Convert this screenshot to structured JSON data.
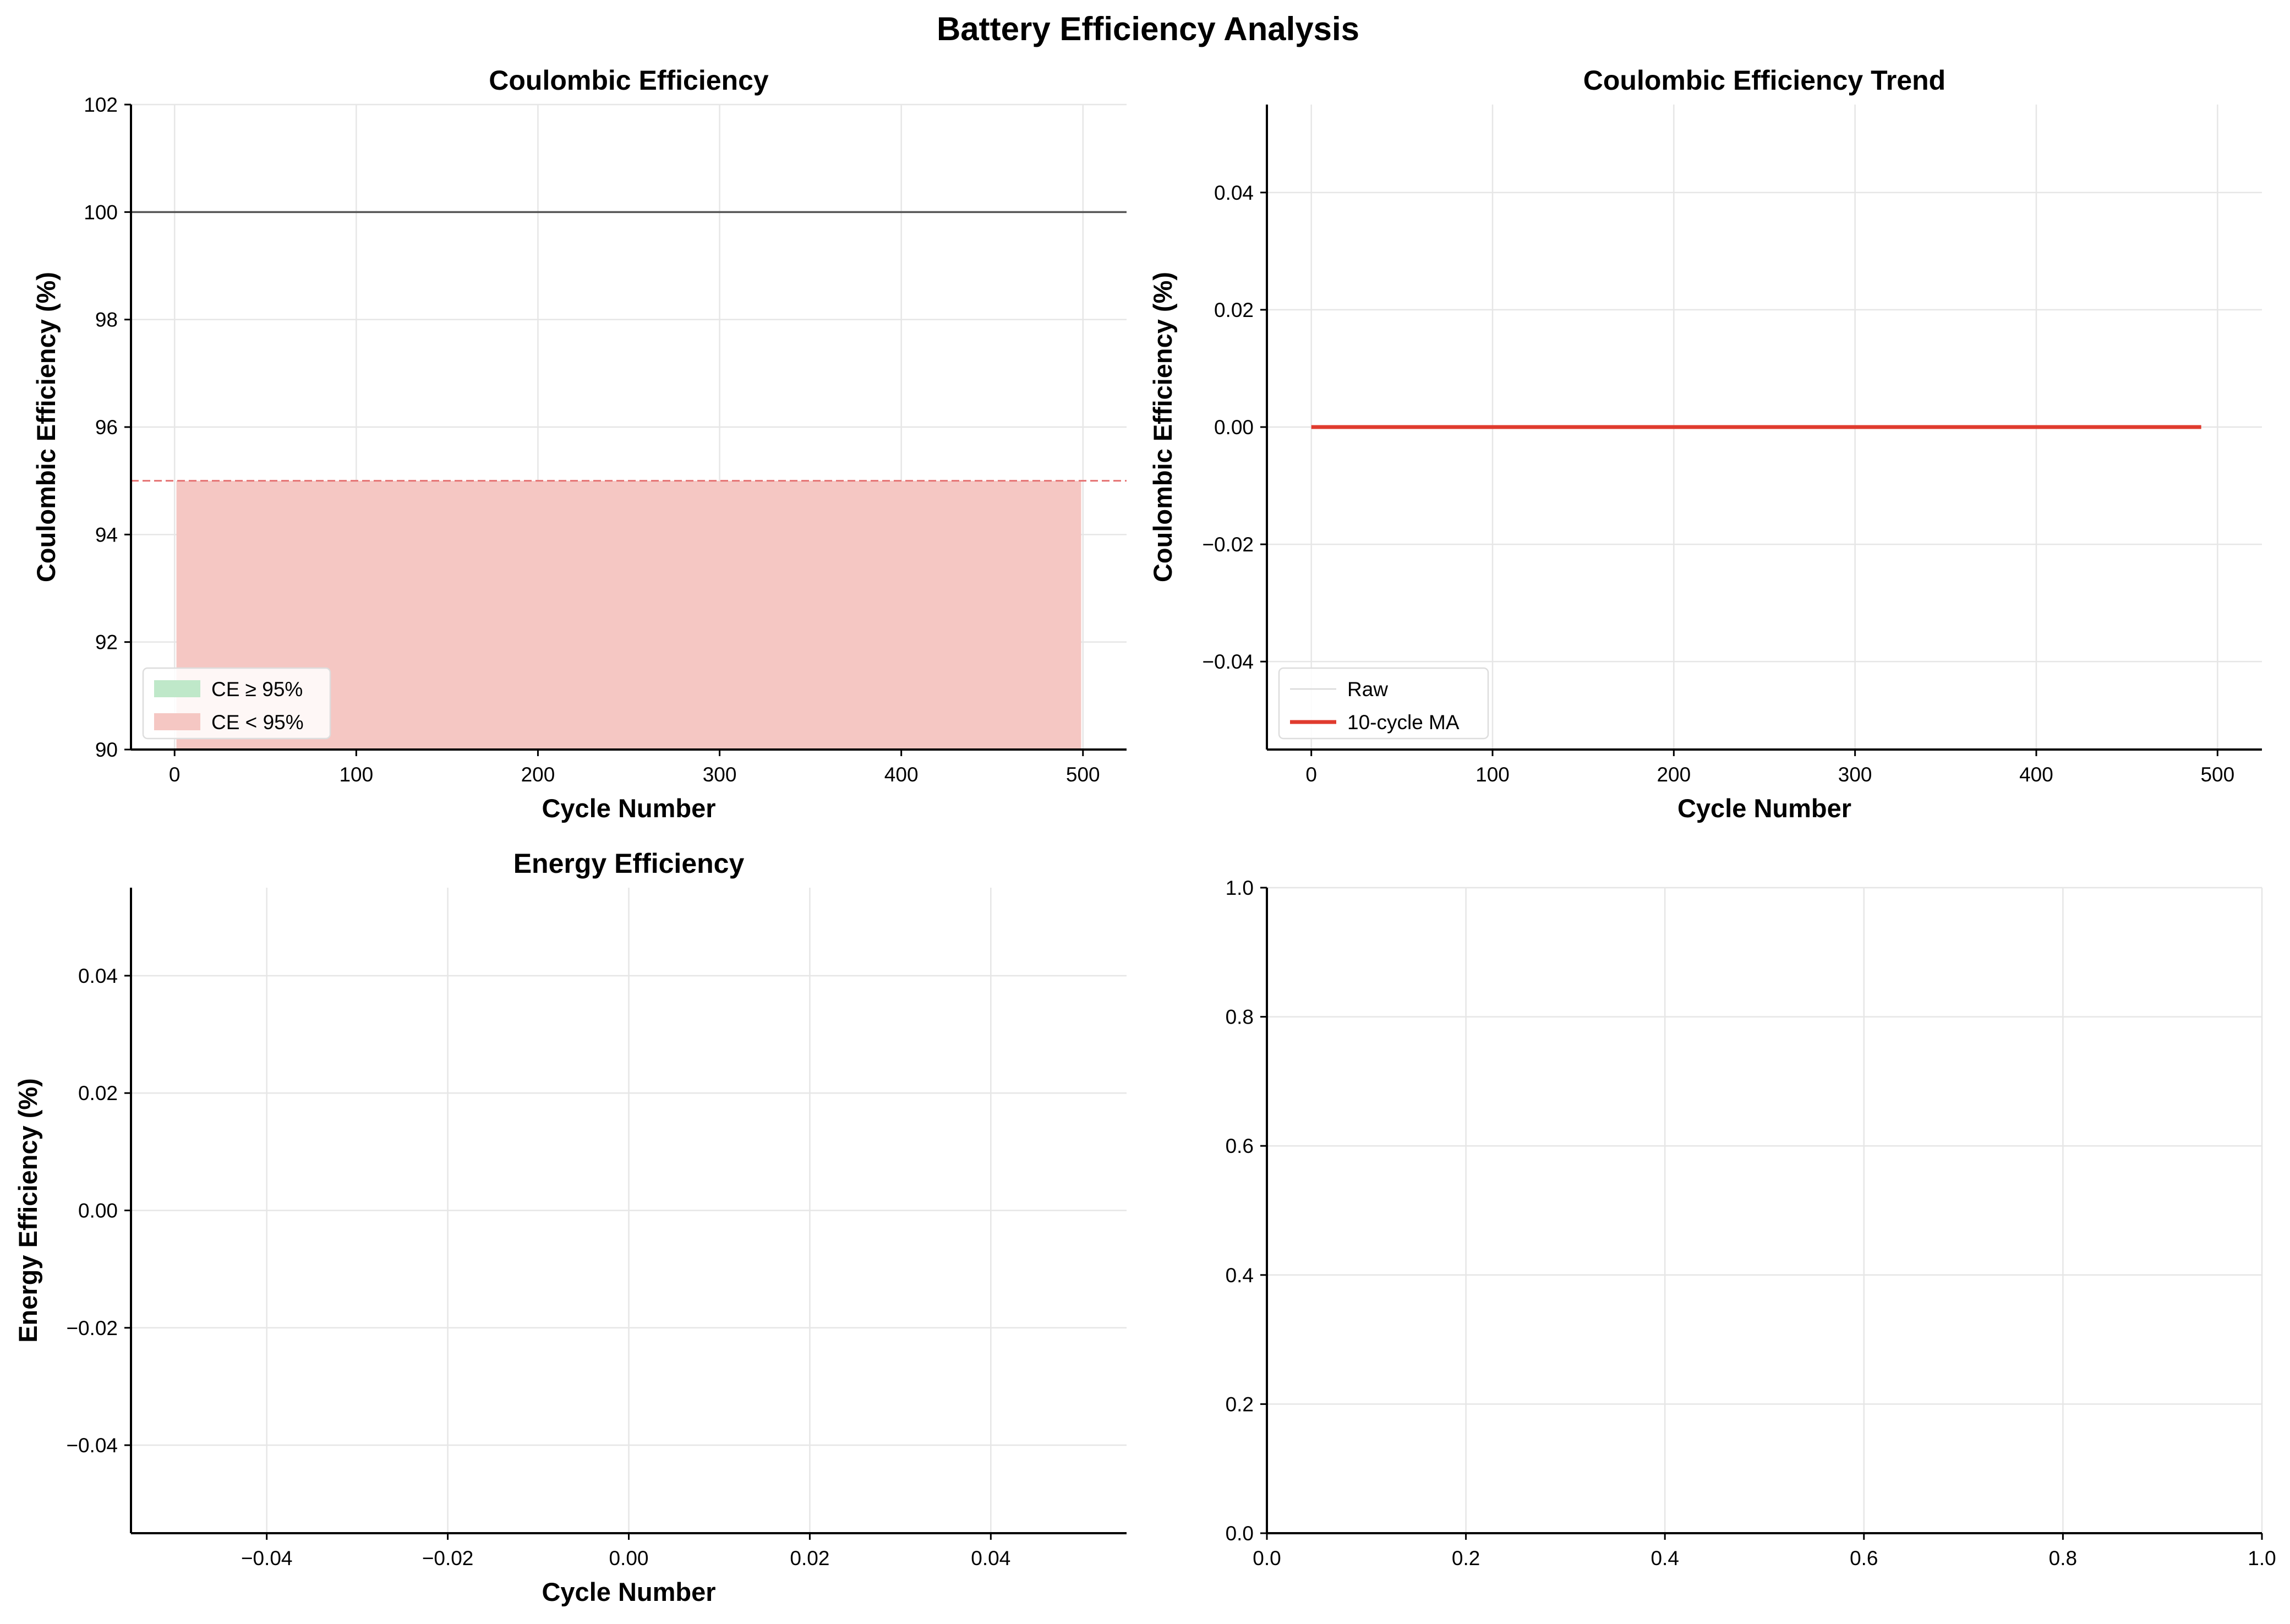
{
  "figure": {
    "title": "Battery Efficiency Analysis"
  },
  "chart_data": [
    {
      "id": "coulombic-efficiency",
      "type": "area",
      "title": "Coulombic Efficiency",
      "xlabel": "Cycle Number",
      "ylabel": "Coulombic Efficiency (%)",
      "xlim": [
        -24,
        524
      ],
      "ylim": [
        90,
        102
      ],
      "xticks": [
        0,
        100,
        200,
        300,
        400,
        500
      ],
      "yticks": [
        90,
        92,
        94,
        96,
        98,
        100,
        102
      ],
      "grid": true,
      "reference_lines": [
        {
          "y": 100,
          "style": "solid",
          "color": "#555555"
        },
        {
          "y": 95,
          "style": "dashed",
          "color": "#e57373"
        }
      ],
      "fills": [
        {
          "name": "CE ≥ 95%",
          "color": "#bfe8c9",
          "x": [],
          "y": []
        },
        {
          "name": "CE < 95%",
          "color": "#f5c7c3",
          "x": [
            1,
            499
          ],
          "y_top": 95,
          "y_base": 90
        }
      ],
      "legend": {
        "position": "lower-left",
        "entries": [
          "CE ≥ 95%",
          "CE < 95%"
        ]
      }
    },
    {
      "id": "coulombic-efficiency-trend",
      "type": "line",
      "title": "Coulombic Efficiency Trend",
      "xlabel": "Cycle Number",
      "ylabel": "Coulombic Efficiency (%)",
      "xlim": [
        -24.5,
        524.5
      ],
      "ylim": [
        -0.055,
        0.055
      ],
      "xticks": [
        0,
        100,
        200,
        300,
        400,
        500
      ],
      "yticks": [
        -0.04,
        -0.02,
        0.0,
        0.02,
        0.04
      ],
      "ytick_labels": [
        "−0.04",
        "−0.02",
        "0.00",
        "0.02",
        "0.04"
      ],
      "grid": true,
      "series": [
        {
          "name": "Raw",
          "color": "#d9d9d9",
          "x": [],
          "y": []
        },
        {
          "name": "10-cycle MA",
          "color": "#e03b2e",
          "x": [
            0,
            491
          ],
          "y": [
            0,
            0
          ]
        }
      ],
      "legend": {
        "position": "lower-left",
        "entries": [
          "Raw",
          "10-cycle MA"
        ]
      }
    },
    {
      "id": "energy-efficiency",
      "type": "line",
      "title": "Energy Efficiency",
      "xlabel": "Cycle Number",
      "ylabel": "Energy Efficiency (%)",
      "xlim": [
        -0.055,
        0.055
      ],
      "ylim": [
        -0.055,
        0.055
      ],
      "xticks": [
        -0.04,
        -0.02,
        0.0,
        0.02,
        0.04
      ],
      "xtick_labels": [
        "−0.04",
        "−0.02",
        "0.00",
        "0.02",
        "0.04"
      ],
      "yticks": [
        -0.04,
        -0.02,
        0.0,
        0.02,
        0.04
      ],
      "ytick_labels": [
        "−0.04",
        "−0.02",
        "0.00",
        "0.02",
        "0.04"
      ],
      "grid": true,
      "series": []
    },
    {
      "id": "empty-panel",
      "type": "line",
      "title": "",
      "xlabel": "",
      "ylabel": "",
      "xlim": [
        0,
        1
      ],
      "ylim": [
        0,
        1
      ],
      "xticks": [
        0.0,
        0.2,
        0.4,
        0.6,
        0.8,
        1.0
      ],
      "xtick_labels": [
        "0.0",
        "0.2",
        "0.4",
        "0.6",
        "0.8",
        "1.0"
      ],
      "yticks": [
        0.0,
        0.2,
        0.4,
        0.6,
        0.8,
        1.0
      ],
      "ytick_labels": [
        "0.0",
        "0.2",
        "0.4",
        "0.6",
        "0.8",
        "1.0"
      ],
      "grid": true,
      "series": []
    }
  ]
}
